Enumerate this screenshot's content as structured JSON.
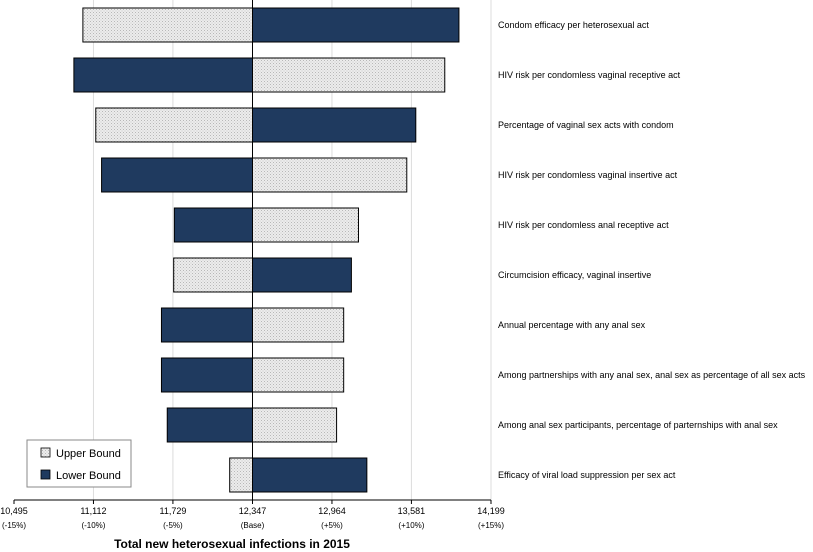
{
  "chart_data": {
    "type": "bar",
    "orientation": "horizontal",
    "subtype": "tornado",
    "title": "",
    "xlabel": "Total new heterosexual infections in 2015",
    "ylabel": "",
    "base": 12347,
    "xlim": [
      10495,
      14199
    ],
    "x_ticks": [
      {
        "value": 10495,
        "label": "10,495",
        "sublabel": "(-15%)"
      },
      {
        "value": 11112,
        "label": "11,112",
        "sublabel": "(-10%)"
      },
      {
        "value": 11729,
        "label": "11,729",
        "sublabel": "(-5%)"
      },
      {
        "value": 12347,
        "label": "12,347",
        "sublabel": "(Base)"
      },
      {
        "value": 12964,
        "label": "12,964",
        "sublabel": "(+5%)"
      },
      {
        "value": 13581,
        "label": "13,581",
        "sublabel": "(+10%)"
      },
      {
        "value": 14199,
        "label": "14,199",
        "sublabel": "(+15%)"
      }
    ],
    "grid": true,
    "legend_position": "bottom-left",
    "categories": [
      "Condom efficacy per heterosexual act",
      "HIV risk per condomless vaginal receptive act",
      "Percentage of vaginal sex acts with condom",
      "HIV risk per condomless vaginal insertive act",
      "HIV risk per condomless anal receptive act",
      "Circumcision efficacy, vaginal insertive",
      "Annual percentage with any anal sex",
      "Among partnerships with any anal sex, anal sex as percentage of all sex acts",
      "Among anal sex participants, percentage of parternships with anal sex",
      "Efficacy of viral load suppression per sex act"
    ],
    "series": [
      {
        "name": "Upper Bound",
        "color": "#e4e4e4",
        "pattern": "dotted",
        "values": [
          11030,
          13840,
          11130,
          13545,
          13170,
          11735,
          13055,
          13055,
          13000,
          12170
        ]
      },
      {
        "name": "Lower Bound",
        "color": "#1f3a5f",
        "values": [
          13950,
          10960,
          13615,
          11175,
          11740,
          13115,
          11640,
          11640,
          11685,
          13235
        ]
      }
    ]
  }
}
